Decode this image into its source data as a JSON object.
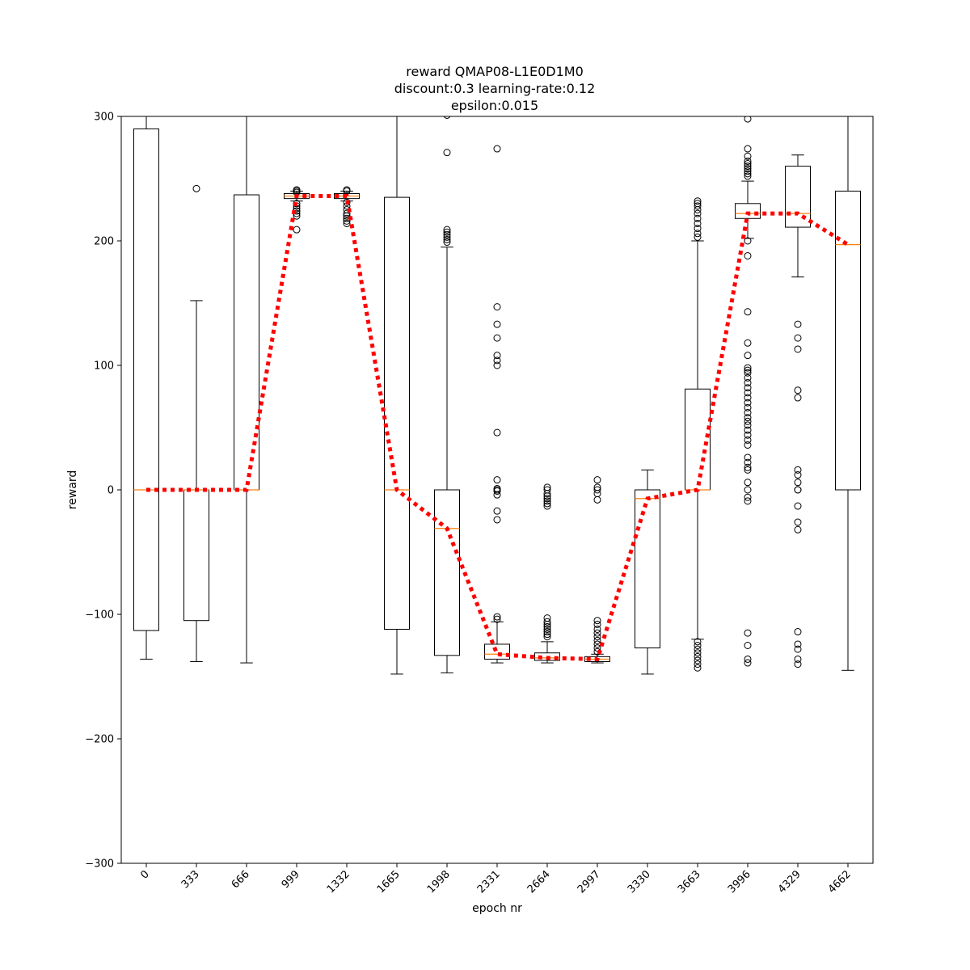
{
  "chart_data": {
    "type": "boxplot",
    "title_lines": [
      "reward QMAP08-L1E0D1M0",
      "discount:0.3 learning-rate:0.12",
      "epsilon:0.015"
    ],
    "xlabel": "epoch nr",
    "ylabel": "reward",
    "ylim": [
      -300,
      300
    ],
    "yticks": [
      -300,
      -200,
      -100,
      0,
      100,
      200,
      300
    ],
    "categories": [
      "0",
      "333",
      "666",
      "999",
      "1332",
      "1665",
      "1998",
      "2331",
      "2664",
      "2997",
      "3330",
      "3663",
      "3996",
      "4329",
      "4662"
    ],
    "boxes": [
      {
        "q1": -113,
        "median": 0,
        "q3": 290,
        "whisker_low": -136,
        "whisker_high": 310,
        "outliers": []
      },
      {
        "q1": -105,
        "median": 0,
        "q3": 0,
        "whisker_low": -138,
        "whisker_high": 152,
        "outliers": [
          242
        ]
      },
      {
        "q1": 0,
        "median": 0,
        "q3": 237,
        "whisker_low": -139,
        "whisker_high": 310,
        "outliers": []
      },
      {
        "q1": 234,
        "median": 236,
        "q3": 238,
        "whisker_low": 232,
        "whisker_high": 240,
        "outliers": [
          241,
          240,
          239,
          230,
          228,
          226,
          224,
          222,
          220,
          209
        ]
      },
      {
        "q1": 234,
        "median": 236,
        "q3": 238,
        "whisker_low": 232,
        "whisker_high": 240,
        "outliers": [
          241,
          240,
          231,
          228,
          225,
          222,
          220,
          218,
          216,
          214
        ]
      },
      {
        "q1": -112,
        "median": 0,
        "q3": 235,
        "whisker_low": -148,
        "whisker_high": 310,
        "outliers": []
      },
      {
        "q1": -133,
        "median": -31,
        "q3": 0,
        "whisker_low": -147,
        "whisker_high": 195,
        "outliers": [
          301,
          271,
          209,
          207,
          205,
          203,
          201,
          199
        ]
      },
      {
        "q1": -136,
        "median": -132,
        "q3": -124,
        "whisker_low": -139,
        "whisker_high": -106,
        "outliers": [
          -104,
          -102,
          274,
          147,
          133,
          122,
          108,
          104,
          100,
          46,
          8,
          1,
          0,
          -1,
          -4,
          -17,
          -24
        ]
      },
      {
        "q1": -137,
        "median": -135,
        "q3": -131,
        "whisker_low": -139,
        "whisker_high": -122,
        "outliers": [
          2,
          0,
          -3,
          -5,
          -7,
          -9,
          -11,
          -13,
          -103,
          -106,
          -108,
          -110,
          -112,
          -114,
          -116,
          -118
        ]
      },
      {
        "q1": -138,
        "median": -136,
        "q3": -134,
        "whisker_low": -139,
        "whisker_high": -132,
        "outliers": [
          8,
          2,
          0,
          -3,
          -8,
          -105,
          -108,
          -112,
          -115,
          -118,
          -121,
          -124,
          -127,
          -130
        ]
      },
      {
        "q1": -127,
        "median": -7,
        "q3": 0,
        "whisker_low": -148,
        "whisker_high": 16,
        "outliers": []
      },
      {
        "q1": 0,
        "median": 0,
        "q3": 81,
        "whisker_low": -120,
        "whisker_high": 200,
        "outliers": [
          232,
          230,
          228,
          225,
          222,
          218,
          214,
          210,
          206,
          203,
          -122,
          -125,
          -128,
          -131,
          -134,
          -137,
          -140,
          -143
        ]
      },
      {
        "q1": 218,
        "median": 222,
        "q3": 230,
        "whisker_low": 202,
        "whisker_high": 248,
        "outliers": [
          298,
          274,
          268,
          264,
          262,
          260,
          258,
          256,
          254,
          252,
          200,
          188,
          143,
          118,
          108,
          98,
          96,
          94,
          90,
          86,
          82,
          78,
          74,
          70,
          66,
          62,
          58,
          55,
          52,
          48,
          44,
          40,
          36,
          26,
          22,
          18,
          16,
          6,
          0,
          -6,
          -9,
          -115,
          -125,
          -136,
          -139
        ]
      },
      {
        "q1": 211,
        "median": 222,
        "q3": 260,
        "whisker_low": 171,
        "whisker_high": 269,
        "outliers": [
          133,
          122,
          113,
          80,
          74,
          16,
          12,
          6,
          0,
          0,
          -13,
          -26,
          -32,
          -114,
          -124,
          -128,
          -136,
          -140
        ]
      },
      {
        "q1": 0,
        "median": 197,
        "q3": 240,
        "whisker_low": -145,
        "whisker_high": 310,
        "outliers": []
      }
    ],
    "median_line": {
      "color": "#ff0000",
      "values": [
        0,
        0,
        0,
        236,
        236,
        0,
        -31,
        -132,
        -135,
        -136,
        -7,
        0,
        222,
        222,
        197
      ]
    },
    "colors": {
      "box": "#000000",
      "median": "#ff7f0e",
      "trend": "#ff0000"
    }
  }
}
